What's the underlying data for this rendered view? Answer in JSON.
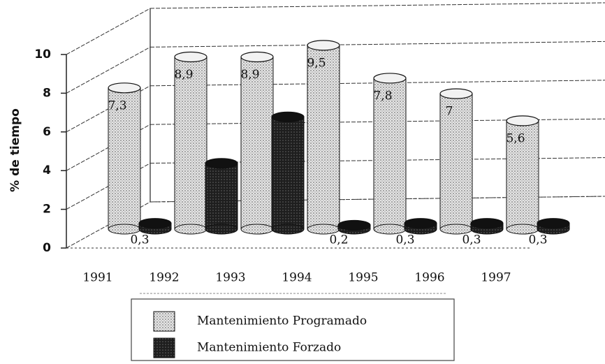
{
  "chart_data": {
    "type": "bar3d",
    "y_label": "% de tiempo",
    "categories": [
      "1991",
      "1992",
      "1993",
      "1994",
      "1995",
      "1996",
      "1997"
    ],
    "series": [
      {
        "name": "Mantenimiento Programado",
        "color": "#d4d4d4",
        "values": [
          7.3,
          8.9,
          8.9,
          9.5,
          7.8,
          7,
          5.6
        ],
        "value_labels": [
          "7,3",
          "8,9",
          "8,9",
          "9,5",
          "7,8",
          "7",
          "5,6"
        ]
      },
      {
        "name": "Mantenimiento Forzado",
        "color": "#262626",
        "values": [
          0.3,
          3.4,
          5.8,
          0.2,
          0.3,
          0.3,
          0.3
        ],
        "value_labels": [
          "0,3",
          null,
          null,
          "0,2",
          "0,3",
          "0,3",
          "0,3"
        ]
      }
    ],
    "ylim": [
      0,
      10
    ],
    "yticks": [
      0,
      2,
      4,
      6,
      8,
      10
    ],
    "grid": true
  }
}
